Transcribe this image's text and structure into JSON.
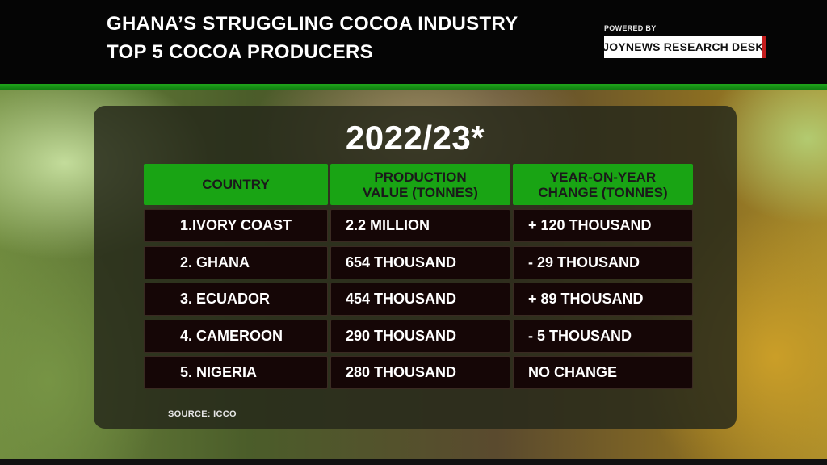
{
  "header": {
    "title_line1": "GHANA’S STRUGGLING COCOA INDUSTRY",
    "title_line2": "TOP 5 COCOA PRODUCERS",
    "powered_by": "POWERED BY",
    "research_desk": "JOYNEWS RESEARCH DESK",
    "accent_color": "#c41d1d"
  },
  "chart_data": {
    "type": "table",
    "period": "2022/23*",
    "columns": [
      "COUNTRY",
      "PRODUCTION VALUE (TONNES)",
      "YEAR-ON-YEAR CHANGE (TONNES)"
    ],
    "rows": [
      [
        "1.IVORY COAST",
        "2.2 MILLION",
        "+ 120 THOUSAND"
      ],
      [
        "2. GHANA",
        "654 THOUSAND",
        "- 29 THOUSAND"
      ],
      [
        "3. ECUADOR",
        "454 THOUSAND",
        "+ 89 THOUSAND"
      ],
      [
        "4. CAMEROON",
        "290 THOUSAND",
        "- 5 THOUSAND"
      ],
      [
        "5. NIGERIA",
        "280 THOUSAND",
        "NO CHANGE"
      ]
    ],
    "source": "SOURCE: ICCO",
    "header_color": "#19a414",
    "cell_color": "#150606"
  }
}
